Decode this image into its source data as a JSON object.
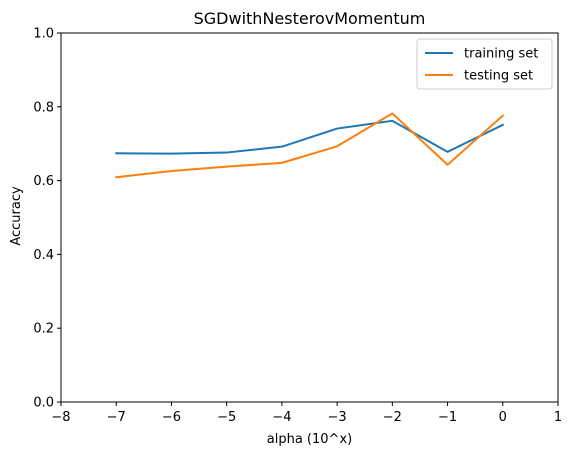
{
  "chart_data": {
    "type": "line",
    "title": "SGDwithNesterovMomentum",
    "xlabel": "alpha (10^x)",
    "ylabel": "Accuracy",
    "xlim": [
      -8,
      1
    ],
    "ylim": [
      0.0,
      1.0
    ],
    "xticks": [
      -8,
      -7,
      -6,
      -5,
      -4,
      -3,
      -2,
      -1,
      0,
      1
    ],
    "xtick_labels": [
      "−8",
      "−7",
      "−6",
      "−5",
      "−4",
      "−3",
      "−2",
      "−1",
      "0",
      "1"
    ],
    "yticks": [
      0.0,
      0.2,
      0.4,
      0.6,
      0.8,
      1.0
    ],
    "ytick_labels": [
      "0.0",
      "0.2",
      "0.4",
      "0.6",
      "0.8",
      "1.0"
    ],
    "grid": false,
    "legend_position": "upper right",
    "x": [
      -7,
      -6,
      -5,
      -4,
      -3,
      -2,
      -1,
      0
    ],
    "series": [
      {
        "name": "training set",
        "color": "#1f77b4",
        "values": [
          0.674,
          0.673,
          0.676,
          0.692,
          0.741,
          0.762,
          0.678,
          0.751
        ]
      },
      {
        "name": "testing set",
        "color": "#ff7f0e",
        "values": [
          0.609,
          0.626,
          0.638,
          0.648,
          0.693,
          0.782,
          0.643,
          0.776
        ]
      }
    ]
  }
}
